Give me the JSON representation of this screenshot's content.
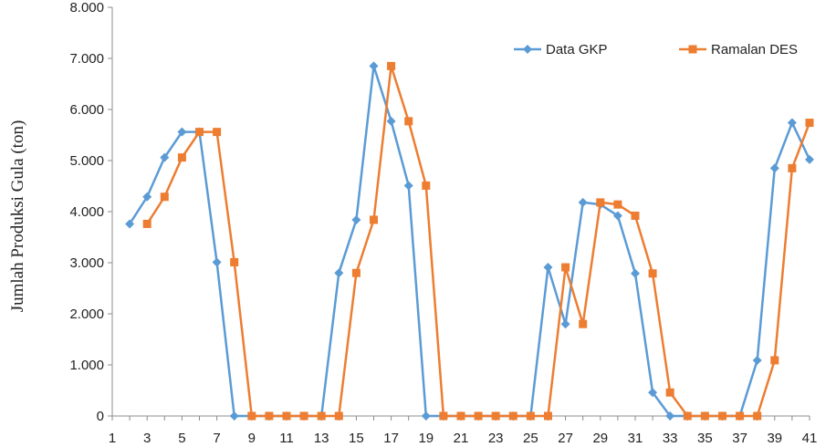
{
  "chart_data": {
    "type": "line",
    "title": "",
    "xlabel": "",
    "ylabel": "Jumlah Produksi Gula (ton)",
    "ylim": [
      0,
      8000
    ],
    "xlim": [
      1,
      41
    ],
    "x_tick_labels": [
      "1",
      "3",
      "5",
      "7",
      "9",
      "11",
      "13",
      "15",
      "17",
      "19",
      "21",
      "23",
      "25",
      "27",
      "29",
      "31",
      "33",
      "35",
      "37",
      "39",
      "41"
    ],
    "y_tick_labels": [
      "0",
      "1.000",
      "2.000",
      "3.000",
      "4.000",
      "5.000",
      "6.000",
      "7.000",
      "8.000"
    ],
    "y_ticks": [
      0,
      1000,
      2000,
      3000,
      4000,
      5000,
      6000,
      7000,
      8000
    ],
    "legend_position": "top-right",
    "grid": false,
    "series": [
      {
        "name": "Data GKP",
        "color": "#5B9BD5",
        "marker": "diamond",
        "x": [
          2,
          3,
          4,
          5,
          6,
          7,
          8,
          9,
          10,
          11,
          12,
          13,
          14,
          15,
          16,
          17,
          18,
          19,
          20,
          21,
          22,
          23,
          24,
          25,
          26,
          27,
          28,
          29,
          30,
          31,
          32,
          33,
          34,
          35,
          36,
          37,
          38,
          39,
          40,
          41
        ],
        "values": [
          3760,
          4290,
          5060,
          5560,
          5560,
          3010,
          0,
          0,
          0,
          0,
          0,
          0,
          2800,
          3840,
          6850,
          5770,
          4510,
          0,
          0,
          0,
          0,
          0,
          0,
          0,
          2910,
          1800,
          4180,
          4140,
          3920,
          2790,
          460,
          0,
          0,
          0,
          0,
          0,
          1090,
          4850,
          5740,
          5020
        ]
      },
      {
        "name": "Ramalan DES",
        "color": "#ED7D31",
        "marker": "square",
        "x": [
          3,
          4,
          5,
          6,
          7,
          8,
          9,
          10,
          11,
          12,
          13,
          14,
          15,
          16,
          17,
          18,
          19,
          20,
          21,
          22,
          23,
          24,
          25,
          26,
          27,
          28,
          29,
          30,
          31,
          32,
          33,
          34,
          35,
          36,
          37,
          38,
          39,
          40,
          41
        ],
        "values": [
          3760,
          4290,
          5060,
          5560,
          5560,
          3010,
          0,
          0,
          0,
          0,
          0,
          0,
          2800,
          3840,
          6850,
          5770,
          4510,
          0,
          0,
          0,
          0,
          0,
          0,
          0,
          2910,
          1800,
          4180,
          4140,
          3920,
          2790,
          460,
          0,
          0,
          0,
          0,
          0,
          1090,
          4850,
          5740
        ]
      }
    ]
  }
}
